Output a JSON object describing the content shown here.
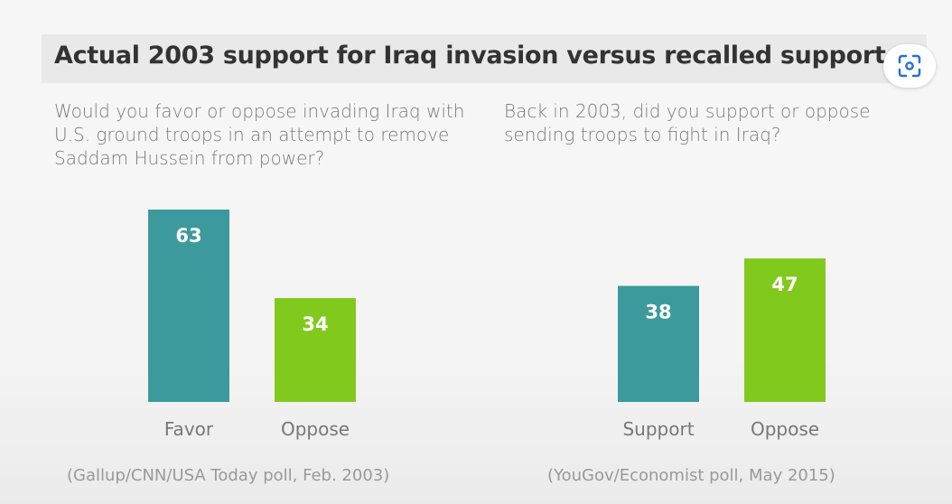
{
  "title": "Actual 2003 support for Iraq invasion versus recalled support",
  "scan_button": {
    "icon": "lens-scan-icon"
  },
  "colors": {
    "teal": "#3d9a9c",
    "green": "#82c91e"
  },
  "chart_data": [
    {
      "type": "bar",
      "title": "Would you favor or oppose invading Iraq with U.S. ground troops in an attempt to remove Saddam Hussein from power?",
      "categories": [
        "Favor",
        "Oppose"
      ],
      "values": [
        63,
        34
      ],
      "colors": [
        "#3d9a9c",
        "#82c91e"
      ],
      "source": "(Gallup/CNN/USA Today poll, Feb. 2003)",
      "ylim": [
        0,
        65
      ],
      "grid": false
    },
    {
      "type": "bar",
      "title": "Back in 2003, did you support or oppose sending troops to fight in Iraq?",
      "categories": [
        "Support",
        "Oppose"
      ],
      "values": [
        38,
        47
      ],
      "colors": [
        "#3d9a9c",
        "#82c91e"
      ],
      "source": "(YouGov/Economist poll, May 2015)",
      "ylim": [
        0,
        65
      ],
      "grid": false
    }
  ]
}
